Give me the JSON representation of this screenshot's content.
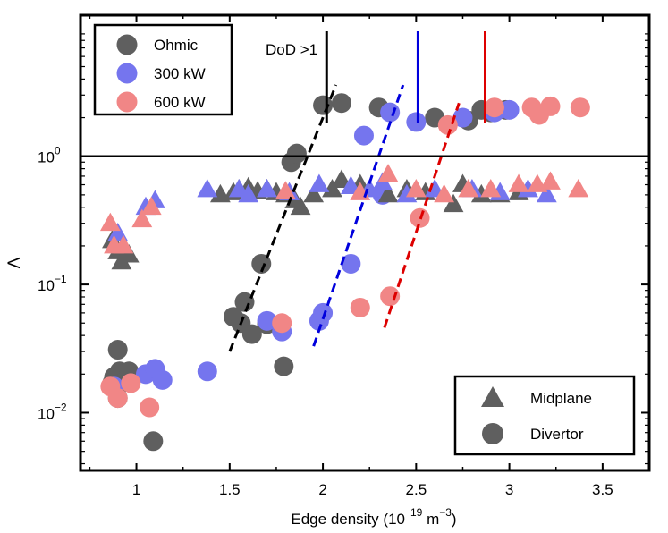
{
  "chart_data": {
    "type": "scatter",
    "xlabel": "Edge density (10",
    "xlabel_exp": "19",
    "xlabel_unit": " m",
    "xlabel_unit_exp": "−3",
    "xlabel_close": ")",
    "ylabel": "Λ",
    "xlim": [
      0.7,
      3.75
    ],
    "ylim_log10": [
      -2.45,
      1.1
    ],
    "yscale": "log",
    "x_ticks": [
      {
        "v": 1,
        "label": "1"
      },
      {
        "v": 1.5,
        "label": "1.5"
      },
      {
        "v": 2,
        "label": "2"
      },
      {
        "v": 2.5,
        "label": "2.5"
      },
      {
        "v": 3,
        "label": "3"
      },
      {
        "v": 3.5,
        "label": "3.5"
      }
    ],
    "y_ticks": [
      {
        "v": 1,
        "base": "10",
        "exp": "0"
      },
      {
        "v": 0.1,
        "base": "10",
        "exp": "−1"
      },
      {
        "v": 0.01,
        "base": "10",
        "exp": "−2"
      }
    ],
    "horizontal_line": 1.0,
    "colors": {
      "ohmic": "#5f5f5f",
      "kw300": "#7575ee",
      "kw600": "#f18686",
      "black": "#000000",
      "blue": "#0000dd",
      "red": "#dd0000"
    },
    "legend_heating": [
      {
        "label": "Ohmic",
        "color": "#5f5f5f"
      },
      {
        "label": "300 kW",
        "color": "#7575ee"
      },
      {
        "label": "600 kW",
        "color": "#f18686"
      }
    ],
    "legend_location": [
      {
        "label": "Midplane",
        "marker": "triangle"
      },
      {
        "label": "Divertor",
        "marker": "circle"
      }
    ],
    "annotation": "DoD >1",
    "dod_lines": [
      {
        "x": 2.02,
        "color": "#000000"
      },
      {
        "x": 2.51,
        "color": "#0000dd"
      },
      {
        "x": 2.87,
        "color": "#dd0000"
      }
    ],
    "fit_lines": [
      {
        "x1": 1.5,
        "y1": 0.03,
        "x2": 2.07,
        "y2": 3.6,
        "color": "#000000"
      },
      {
        "x1": 1.95,
        "y1": 0.033,
        "x2": 2.43,
        "y2": 3.6,
        "color": "#0000dd"
      },
      {
        "x1": 2.33,
        "y1": 0.046,
        "x2": 2.73,
        "y2": 2.6,
        "color": "#dd0000"
      }
    ],
    "series": [
      {
        "name": "Ohmic divertor",
        "marker": "circle",
        "color": "#5f5f5f",
        "points": [
          [
            0.88,
            0.019
          ],
          [
            0.87,
            0.017
          ],
          [
            0.9,
            0.031
          ],
          [
            0.91,
            0.021
          ],
          [
            0.9,
            0.013
          ],
          [
            0.92,
            0.017
          ],
          [
            0.96,
            0.021
          ],
          [
            1.09,
            0.006
          ],
          [
            1.52,
            0.056
          ],
          [
            1.58,
            0.073
          ],
          [
            1.56,
            0.05
          ],
          [
            1.62,
            0.041
          ],
          [
            1.67,
            0.145
          ],
          [
            1.7,
            0.049
          ],
          [
            1.79,
            0.023
          ],
          [
            1.83,
            0.9
          ],
          [
            1.86,
            1.05
          ],
          [
            2.0,
            2.5
          ],
          [
            2.1,
            2.6
          ],
          [
            2.3,
            2.4
          ],
          [
            2.6,
            2.0
          ],
          [
            2.78,
            1.9
          ],
          [
            2.85,
            2.3
          ],
          [
            2.9,
            2.2
          ],
          [
            2.98,
            2.3
          ]
        ]
      },
      {
        "name": "300 kW divertor",
        "marker": "circle",
        "color": "#7575ee",
        "points": [
          [
            0.88,
            0.016
          ],
          [
            1.05,
            0.02
          ],
          [
            1.1,
            0.022
          ],
          [
            1.14,
            0.018
          ],
          [
            1.38,
            0.021
          ],
          [
            1.7,
            0.052
          ],
          [
            1.78,
            0.043
          ],
          [
            1.98,
            0.052
          ],
          [
            2.0,
            0.06
          ],
          [
            2.15,
            0.145
          ],
          [
            2.32,
            0.5
          ],
          [
            2.22,
            1.45
          ],
          [
            2.36,
            2.2
          ],
          [
            2.5,
            1.85
          ],
          [
            2.75,
            2.0
          ],
          [
            2.92,
            2.2
          ],
          [
            3.0,
            2.3
          ]
        ]
      },
      {
        "name": "600 kW divertor",
        "marker": "circle",
        "color": "#f18686",
        "points": [
          [
            0.86,
            0.016
          ],
          [
            0.9,
            0.013
          ],
          [
            0.97,
            0.017
          ],
          [
            1.07,
            0.011
          ],
          [
            1.78,
            0.05
          ],
          [
            2.2,
            0.066
          ],
          [
            2.36,
            0.081
          ],
          [
            2.52,
            0.33
          ],
          [
            2.67,
            1.75
          ],
          [
            2.92,
            2.4
          ],
          [
            3.12,
            2.4
          ],
          [
            3.16,
            2.1
          ],
          [
            3.22,
            2.45
          ],
          [
            3.38,
            2.4
          ]
        ]
      },
      {
        "name": "Ohmic midplane",
        "marker": "triangle",
        "color": "#5f5f5f",
        "points": [
          [
            0.87,
            0.22
          ],
          [
            0.9,
            0.18
          ],
          [
            0.92,
            0.15
          ],
          [
            0.96,
            0.17
          ],
          [
            1.45,
            0.5
          ],
          [
            1.52,
            0.52
          ],
          [
            1.55,
            0.55
          ],
          [
            1.6,
            0.57
          ],
          [
            1.65,
            0.53
          ],
          [
            1.7,
            0.55
          ],
          [
            1.75,
            0.52
          ],
          [
            1.8,
            0.5
          ],
          [
            1.85,
            0.45
          ],
          [
            1.88,
            0.4
          ],
          [
            1.95,
            0.5
          ],
          [
            2.05,
            0.55
          ],
          [
            2.1,
            0.65
          ],
          [
            2.2,
            0.6
          ],
          [
            2.35,
            0.5
          ],
          [
            2.45,
            0.55
          ],
          [
            2.55,
            0.52
          ],
          [
            2.7,
            0.42
          ],
          [
            2.75,
            0.6
          ],
          [
            2.85,
            0.5
          ],
          [
            2.95,
            0.5
          ],
          [
            3.05,
            0.52
          ]
        ]
      },
      {
        "name": "300 kW midplane",
        "marker": "triangle",
        "color": "#7575ee",
        "points": [
          [
            0.9,
            0.25
          ],
          [
            1.05,
            0.4
          ],
          [
            1.1,
            0.45
          ],
          [
            1.38,
            0.55
          ],
          [
            1.55,
            0.55
          ],
          [
            1.6,
            0.5
          ],
          [
            1.7,
            0.55
          ],
          [
            1.82,
            0.52
          ],
          [
            1.98,
            0.6
          ],
          [
            2.15,
            0.58
          ],
          [
            2.25,
            0.55
          ],
          [
            2.32,
            0.62
          ],
          [
            2.45,
            0.5
          ],
          [
            2.6,
            0.55
          ],
          [
            2.8,
            0.55
          ],
          [
            2.95,
            0.52
          ],
          [
            3.1,
            0.55
          ],
          [
            3.2,
            0.5
          ]
        ]
      },
      {
        "name": "600 kW midplane",
        "marker": "triangle",
        "color": "#f18686",
        "points": [
          [
            0.86,
            0.3
          ],
          [
            0.88,
            0.2
          ],
          [
            0.93,
            0.2
          ],
          [
            1.03,
            0.32
          ],
          [
            1.08,
            0.4
          ],
          [
            1.8,
            0.53
          ],
          [
            2.2,
            0.52
          ],
          [
            2.35,
            0.72
          ],
          [
            2.5,
            0.55
          ],
          [
            2.65,
            0.5
          ],
          [
            2.78,
            0.55
          ],
          [
            2.9,
            0.55
          ],
          [
            3.05,
            0.6
          ],
          [
            3.15,
            0.6
          ],
          [
            3.22,
            0.63
          ],
          [
            3.37,
            0.55
          ]
        ]
      }
    ]
  }
}
